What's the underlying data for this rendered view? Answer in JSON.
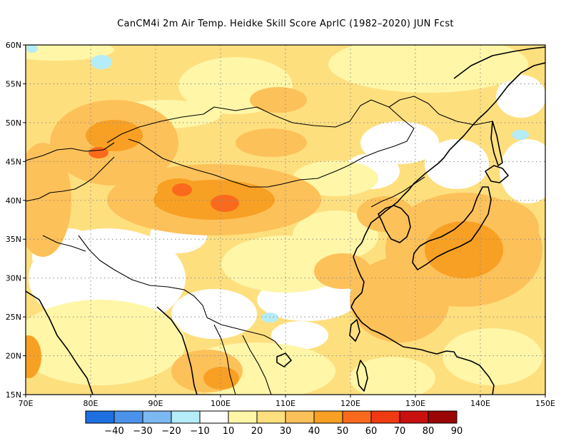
{
  "title": "CanCM4i  2m Air Temp. Heidke Skill Score AprIC (1982–2020) JUN Fcst",
  "map": {
    "lat_labels": [
      "60N",
      "55N",
      "50N",
      "45N",
      "40N",
      "35N",
      "30N",
      "25N",
      "20N",
      "15N"
    ],
    "lon_labels": [
      "70E",
      "80E",
      "90E",
      "100E",
      "110E",
      "120E",
      "130E",
      "140E",
      "150E"
    ],
    "lon_range": [
      70,
      150
    ],
    "lat_range": [
      15,
      60
    ],
    "grid": "dotted"
  },
  "colorbar": {
    "labels": [
      "−40",
      "−30",
      "−20",
      "−10",
      "10",
      "20",
      "30",
      "40",
      "50",
      "60",
      "70",
      "80",
      "90"
    ],
    "colors": [
      "#1e6fe0",
      "#4b93ea",
      "#7cb8f2",
      "#b4ecf8",
      "#ffffff",
      "#fff6a8",
      "#fedf7e",
      "#fdc15a",
      "#f8a023",
      "#fb6a1c",
      "#ef3a12",
      "#c8100e",
      "#9a0606"
    ]
  },
  "skill_colors": {
    "white": "#ffffff",
    "pale_yellow": "#fff6a8",
    "light_orange": "#fedf7e",
    "orange": "#fdc15a",
    "dark_orange": "#f8a023",
    "red_orange": "#fb6a1c",
    "light_blue": "#b4ecf8"
  }
}
